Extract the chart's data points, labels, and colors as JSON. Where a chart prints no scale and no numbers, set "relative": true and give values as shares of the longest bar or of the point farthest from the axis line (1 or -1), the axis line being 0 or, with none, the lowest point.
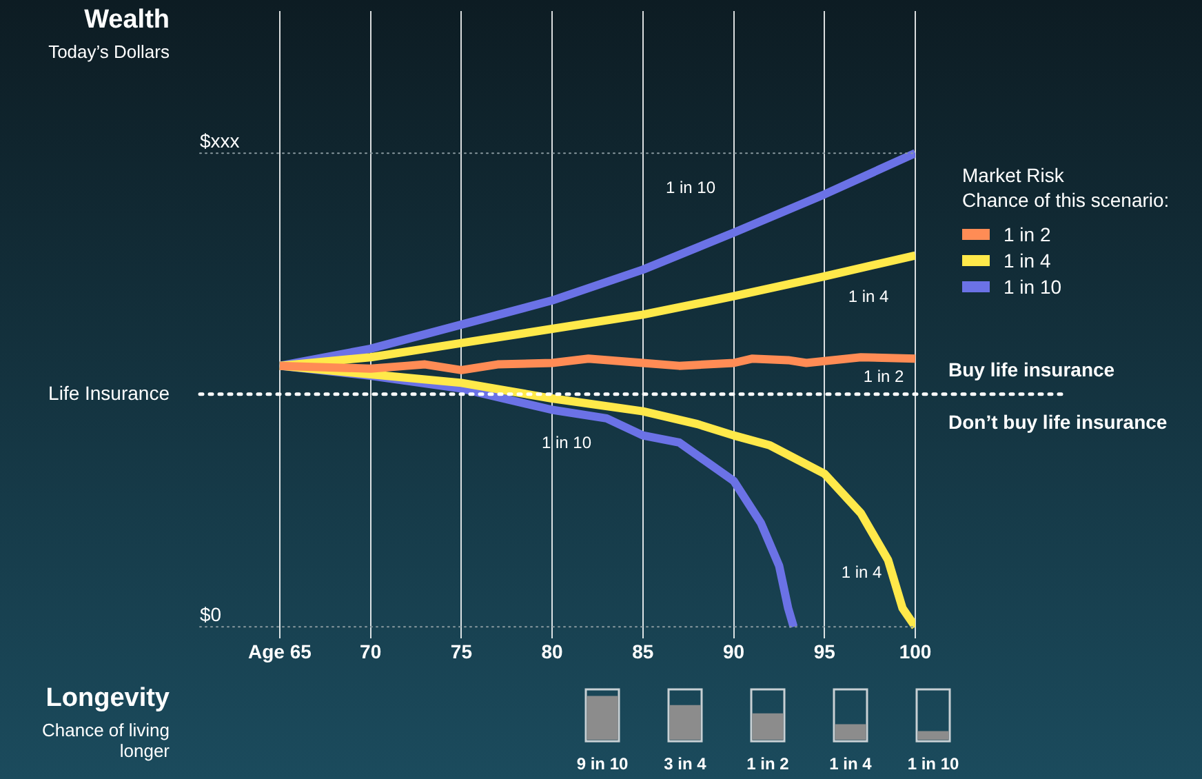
{
  "chart_data": [
    {
      "type": "line",
      "title": "Wealth",
      "subtitle": "Today’s Dollars",
      "relative": true,
      "xlim": [
        60.6,
        100
      ],
      "xticks": [
        {
          "value": 65,
          "label": "Age 65"
        },
        70,
        75,
        80,
        85,
        90,
        95,
        100
      ],
      "grid": "x",
      "legend": "right",
      "legend_title": "Market Risk\nChance of this scenario:",
      "ref_lines": [
        {
          "axis": "y",
          "value": 1,
          "label": "$xxx",
          "color": "#8a9aa0",
          "line_style": "dotted"
        },
        {
          "axis": "y",
          "value": 0,
          "label": "$0",
          "color": "#8a9aa0",
          "line_style": "dotted"
        },
        {
          "axis": "y",
          "value": 0.491,
          "label": "Life Insurance",
          "color": "#ffffff",
          "line_style": "dotted"
        }
      ],
      "xlabel": "Longevity",
      "annotations": [
        "1 in 10",
        "1 in 4",
        "1 in 2",
        "1 in 10",
        "1 in 4",
        "Buy life insurance",
        "Don’t buy life insurance",
        "Chance of living longer"
      ],
      "series": [
        {
          "name": "1 in 2",
          "color": "#ff8c55",
          "x": [
            65,
            70,
            72,
            73,
            75,
            77,
            80,
            82,
            85,
            87,
            90,
            91,
            93,
            94,
            97,
            100
          ],
          "values": [
            0.551,
            0.545,
            0.551,
            0.554,
            0.542,
            0.554,
            0.557,
            0.566,
            0.557,
            0.551,
            0.557,
            0.566,
            0.563,
            0.557,
            0.569,
            0.566
          ]
        },
        {
          "name": "1 in 4",
          "color": "#ffe94a",
          "x": [
            65,
            70,
            75,
            80,
            85,
            90,
            95,
            100
          ],
          "values": [
            0.551,
            0.569,
            0.599,
            0.629,
            0.659,
            0.698,
            0.74,
            0.784
          ]
        },
        {
          "name": "1 in 10",
          "color": "#6b72e6",
          "x": [
            65,
            70,
            75,
            80,
            85,
            90,
            95,
            100
          ],
          "values": [
            0.551,
            0.587,
            0.638,
            0.689,
            0.754,
            0.832,
            0.913,
            1
          ]
        },
        {
          "color": "#ffe94a",
          "x": [
            65,
            70,
            75,
            80,
            85,
            88,
            90,
            92,
            95,
            97,
            98.5,
            99.3,
            100
          ],
          "values": [
            0.551,
            0.533,
            0.515,
            0.482,
            0.455,
            0.428,
            0.404,
            0.383,
            0.323,
            0.24,
            0.141,
            0.039,
            0
          ]
        },
        {
          "color": "#6b72e6",
          "x": [
            65,
            70,
            75,
            80,
            83,
            85,
            87,
            90,
            91.5,
            92.5,
            93,
            93.3
          ],
          "values": [
            0.551,
            0.53,
            0.503,
            0.458,
            0.44,
            0.404,
            0.389,
            0.308,
            0.219,
            0.129,
            0.039,
            0
          ]
        }
      ]
    },
    {
      "type": "bar",
      "relative": true,
      "categories": [
        "9 in 10",
        "3 in 4",
        "1 in 2",
        "1 in 4",
        "1 in 10"
      ],
      "values": [
        1,
        0.79,
        0.6,
        0.35,
        0.19
      ],
      "color": "#8c8c8c"
    }
  ]
}
